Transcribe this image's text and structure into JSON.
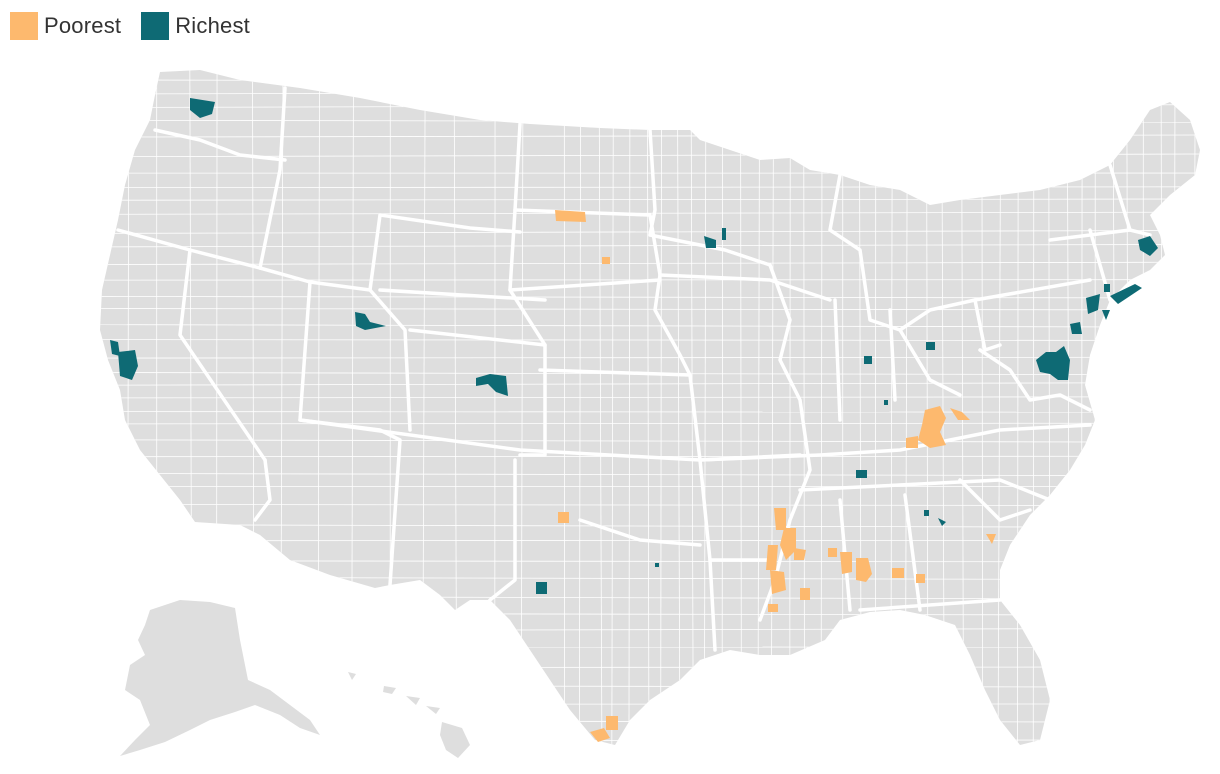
{
  "legend": {
    "items": [
      {
        "label": "Poorest",
        "color": "#FDB96E"
      },
      {
        "label": "Richest",
        "color": "#0E6A74"
      }
    ]
  },
  "colors": {
    "land": "#DEDEDE",
    "border": "#FFFFFF",
    "poorest": "#FDB96E",
    "richest": "#0E6A74"
  },
  "map": {
    "regions": [
      "contiguous-us",
      "alaska",
      "hawaii"
    ]
  }
}
